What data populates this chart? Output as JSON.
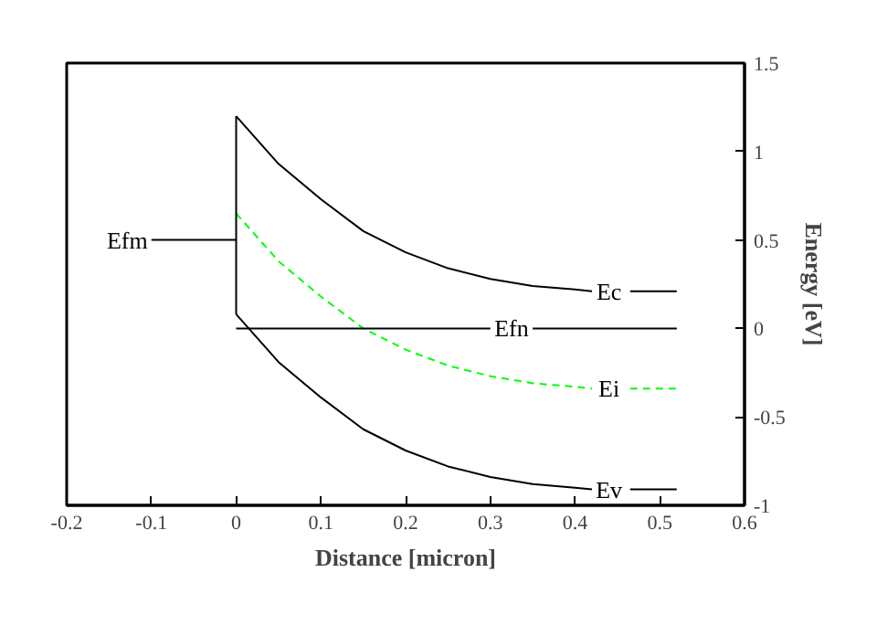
{
  "chart_data": {
    "type": "line",
    "xlabel": "Distance [micron]",
    "ylabel": "Energy [eV]",
    "xlim": [
      -0.2,
      0.6
    ],
    "xticks": [
      -0.2,
      -0.1,
      0,
      0.1,
      0.2,
      0.3,
      0.4,
      0.5,
      0.6
    ],
    "ylim": [
      -1,
      1.5
    ],
    "yticks": [
      -1,
      -0.5,
      0,
      0.5,
      1,
      1.5
    ],
    "grid": false,
    "line_style": "solid",
    "series": [
      {
        "name": "Ec",
        "color": "#000000",
        "x": [
          0,
          0.05,
          0.1,
          0.15,
          0.2,
          0.25,
          0.3,
          0.35,
          0.4,
          0.42,
          0.44,
          0.465,
          0.52
        ],
        "values": [
          1.2,
          0.93,
          0.73,
          0.55,
          0.43,
          0.34,
          0.28,
          0.24,
          0.22,
          0.21,
          null,
          0.21,
          0.21
        ]
      },
      {
        "name": "Ei",
        "color": "#00ff00",
        "line_style": "dashed",
        "x": [
          0,
          0.05,
          0.1,
          0.15,
          0.2,
          0.25,
          0.3,
          0.35,
          0.4,
          0.42,
          0.44,
          0.465,
          0.52
        ],
        "values": [
          0.65,
          0.38,
          0.18,
          0.0,
          -0.12,
          -0.21,
          -0.27,
          -0.31,
          -0.33,
          -0.34,
          null,
          -0.34,
          -0.34
        ]
      },
      {
        "name": "Ev",
        "color": "#000000",
        "x": [
          0,
          0.05,
          0.1,
          0.15,
          0.2,
          0.25,
          0.3,
          0.35,
          0.4,
          0.42,
          0.44,
          0.465,
          0.52
        ],
        "values": [
          0.08,
          -0.19,
          -0.39,
          -0.57,
          -0.69,
          -0.78,
          -0.84,
          -0.88,
          -0.9,
          -0.91,
          null,
          -0.91,
          -0.91
        ]
      },
      {
        "name": "Efn",
        "color": "#000000",
        "x": [
          0,
          0.3,
          0.325,
          0.35,
          0.52
        ],
        "values": [
          0,
          0,
          null,
          0,
          0
        ]
      },
      {
        "color": "#000000",
        "x": [
          0,
          0
        ],
        "values": [
          0.08,
          1.2
        ]
      },
      {
        "name": "Efm",
        "color": "#000000",
        "x": [
          -0.1,
          0
        ],
        "values": [
          0.5,
          0.5
        ]
      }
    ]
  }
}
